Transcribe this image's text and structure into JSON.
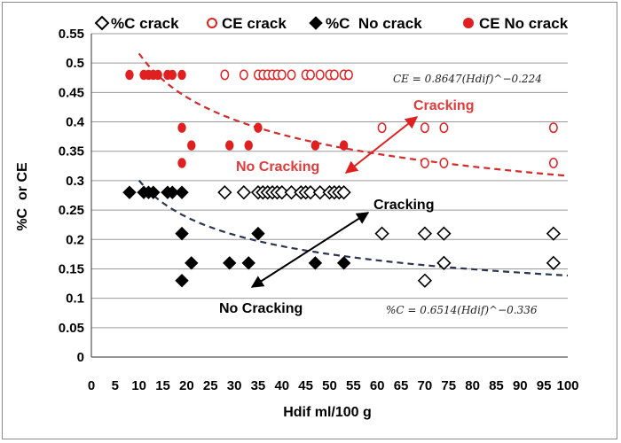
{
  "chart_data": {
    "type": "scatter",
    "xlabel": "Hdif ml/100 g",
    "ylabel": "%C  or CE",
    "xlim": [
      0,
      100
    ],
    "ylim": [
      0,
      0.55
    ],
    "x_ticks": [
      "0",
      "5",
      "10",
      "15",
      "20",
      "25",
      "30",
      "35",
      "40",
      "45",
      "50",
      "55",
      "60",
      "65",
      "70",
      "75",
      "80",
      "85",
      "90",
      "95",
      "100"
    ],
    "y_ticks": [
      "0",
      "0.05",
      "0.1",
      "0.15",
      "0.2",
      "0.25",
      "0.3",
      "0.35",
      "0.4",
      "0.45",
      "0.5",
      "0.55"
    ],
    "legend_position": "top",
    "grid": "horizontal",
    "series": [
      {
        "name": "%C crack",
        "marker": "diamond-open",
        "color": "#000000",
        "points": [
          [
            28,
            0.28
          ],
          [
            32,
            0.28
          ],
          [
            35,
            0.28
          ],
          [
            36,
            0.28
          ],
          [
            37,
            0.28
          ],
          [
            38,
            0.28
          ],
          [
            39,
            0.28
          ],
          [
            40,
            0.28
          ],
          [
            42,
            0.28
          ],
          [
            44,
            0.28
          ],
          [
            45,
            0.28
          ],
          [
            46,
            0.28
          ],
          [
            48,
            0.28
          ],
          [
            50,
            0.28
          ],
          [
            51,
            0.28
          ],
          [
            52,
            0.28
          ],
          [
            53,
            0.28
          ],
          [
            61,
            0.21
          ],
          [
            70,
            0.21
          ],
          [
            74,
            0.21
          ],
          [
            74,
            0.16
          ],
          [
            70,
            0.13
          ],
          [
            97,
            0.21
          ],
          [
            97,
            0.16
          ]
        ]
      },
      {
        "name": "CE crack",
        "marker": "circle-open",
        "color": "#e02020",
        "points": [
          [
            28,
            0.48
          ],
          [
            32,
            0.48
          ],
          [
            35,
            0.48
          ],
          [
            36,
            0.48
          ],
          [
            37,
            0.48
          ],
          [
            38,
            0.48
          ],
          [
            39,
            0.48
          ],
          [
            40,
            0.48
          ],
          [
            42,
            0.48
          ],
          [
            45,
            0.48
          ],
          [
            46,
            0.48
          ],
          [
            48,
            0.48
          ],
          [
            50,
            0.48
          ],
          [
            51,
            0.48
          ],
          [
            53,
            0.48
          ],
          [
            54,
            0.48
          ],
          [
            61,
            0.39
          ],
          [
            70,
            0.39
          ],
          [
            74,
            0.39
          ],
          [
            70,
            0.33
          ],
          [
            74,
            0.33
          ],
          [
            97,
            0.39
          ],
          [
            97,
            0.33
          ]
        ]
      },
      {
        "name": "%C  No crack",
        "marker": "diamond-filled",
        "color": "#000000",
        "points": [
          [
            8,
            0.28
          ],
          [
            11,
            0.28
          ],
          [
            12,
            0.28
          ],
          [
            13,
            0.28
          ],
          [
            16,
            0.28
          ],
          [
            17,
            0.28
          ],
          [
            19,
            0.28
          ],
          [
            19,
            0.21
          ],
          [
            19,
            0.13
          ],
          [
            21,
            0.16
          ],
          [
            29,
            0.16
          ],
          [
            33,
            0.16
          ],
          [
            35,
            0.21
          ],
          [
            47,
            0.16
          ],
          [
            53,
            0.16
          ]
        ]
      },
      {
        "name": "CE No crack",
        "marker": "circle-filled",
        "color": "#e02020",
        "points": [
          [
            8,
            0.48
          ],
          [
            11,
            0.48
          ],
          [
            12,
            0.48
          ],
          [
            13,
            0.48
          ],
          [
            14,
            0.48
          ],
          [
            16,
            0.48
          ],
          [
            17,
            0.48
          ],
          [
            19,
            0.48
          ],
          [
            19,
            0.39
          ],
          [
            21,
            0.36
          ],
          [
            19,
            0.33
          ],
          [
            29,
            0.36
          ],
          [
            33,
            0.36
          ],
          [
            35,
            0.39
          ],
          [
            47,
            0.36
          ],
          [
            53,
            0.36
          ]
        ]
      }
    ],
    "trendlines": [
      {
        "name": "CE",
        "a": 0.8647,
        "b": -0.224,
        "from": 10,
        "to": 100,
        "color": "#d42a2a",
        "equation": "CE = 0.8647(Hdif)^−0.224"
      },
      {
        "name": "%C",
        "a": 0.6514,
        "b": -0.336,
        "from": 10,
        "to": 100,
        "color": "#2b3550",
        "equation": "%C = 0.6514(Hdif)^−0.336"
      }
    ],
    "annotations": [
      {
        "id": "red_cracking",
        "text": "Cracking"
      },
      {
        "id": "red_no_cracking",
        "text": "No Cracking"
      },
      {
        "id": "black_cracking",
        "text": "Cracking"
      },
      {
        "id": "black_no_cracking",
        "text": "No Cracking"
      }
    ]
  }
}
